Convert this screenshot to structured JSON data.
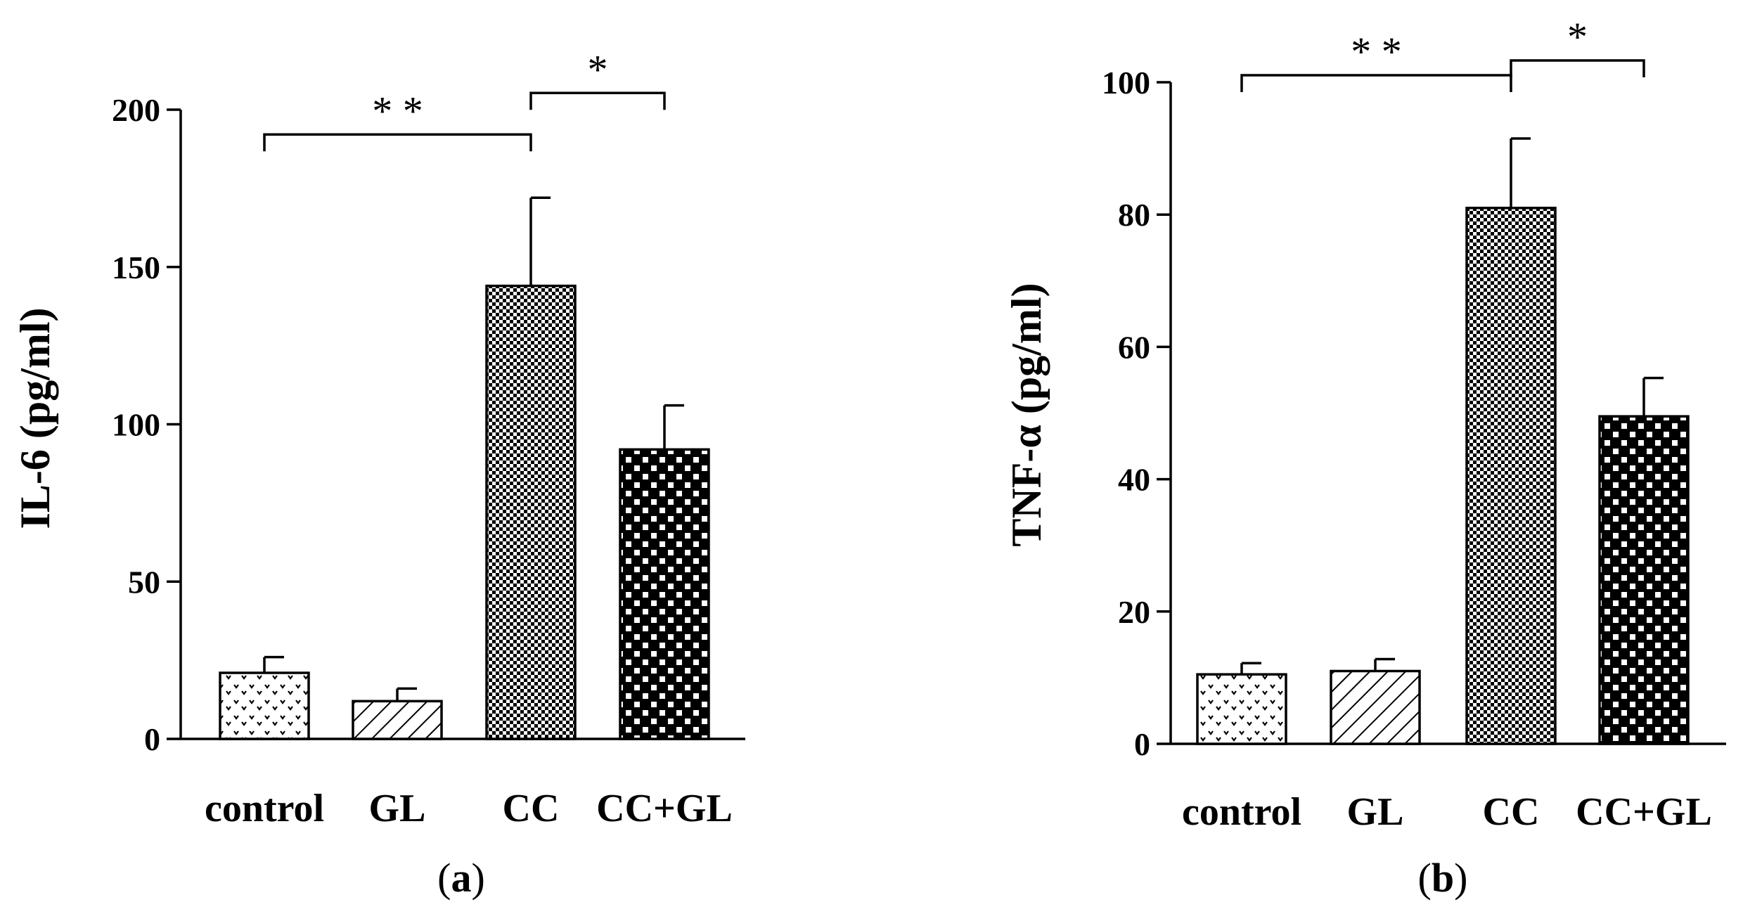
{
  "chart_data": [
    {
      "type": "bar",
      "panel_label": "a",
      "ylabel": "IL-6 (pg/ml)",
      "xlabel": "",
      "ylim": [
        0,
        200
      ],
      "yticks": [
        0,
        50,
        100,
        150,
        200
      ],
      "categories": [
        "control",
        "GL",
        "CC",
        "CC+GL"
      ],
      "values": [
        21,
        12,
        144,
        92
      ],
      "errors": [
        5,
        4,
        28,
        14
      ],
      "patterns": [
        "dots",
        "hatch",
        "checker-fine",
        "checker-coarse"
      ],
      "significance": [
        {
          "from": 0,
          "to": 2,
          "label": "* *"
        },
        {
          "from": 2,
          "to": 3,
          "label": "*"
        }
      ]
    },
    {
      "type": "bar",
      "panel_label": "b",
      "ylabel": "TNF-α (pg/ml)",
      "xlabel": "",
      "ylim": [
        0,
        100
      ],
      "yticks": [
        0,
        20,
        40,
        60,
        80,
        100
      ],
      "categories": [
        "control",
        "GL",
        "CC",
        "CC+GL"
      ],
      "values": [
        10.5,
        11,
        81,
        49.5
      ],
      "errors": [
        1.7,
        1.8,
        10.5,
        5.8
      ],
      "patterns": [
        "dots",
        "hatch",
        "checker-fine",
        "checker-coarse"
      ],
      "significance": [
        {
          "from": 0,
          "to": 2,
          "label": "* *"
        },
        {
          "from": 2,
          "to": 3,
          "label": "*"
        }
      ]
    }
  ]
}
